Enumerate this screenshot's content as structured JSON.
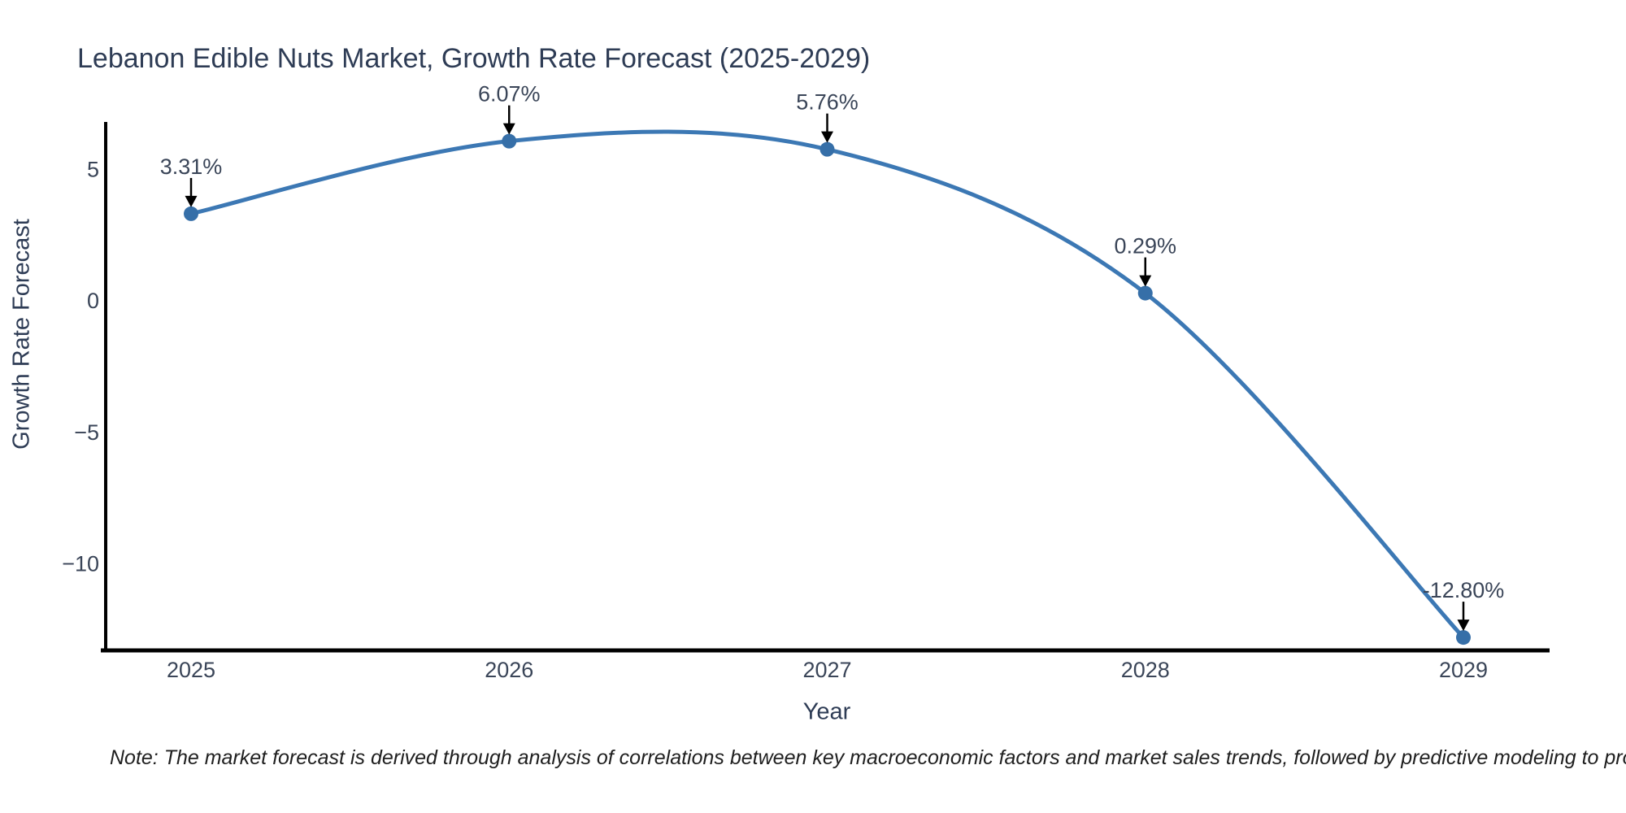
{
  "chart_data": {
    "type": "line",
    "title": "Lebanon Edible Nuts Market, Growth Rate Forecast (2025-2029)",
    "xlabel": "Year",
    "ylabel": "Growth Rate Forecast",
    "x": [
      2025,
      2026,
      2027,
      2028,
      2029
    ],
    "x_tick_labels": [
      "2025",
      "2026",
      "2027",
      "2028",
      "2029"
    ],
    "series": [
      {
        "name": "Growth Rate Forecast",
        "values": [
          3.31,
          6.07,
          5.76,
          0.29,
          -12.8
        ],
        "point_labels": [
          "3.31%",
          "6.07%",
          "5.76%",
          "0.29%",
          "-12.80%"
        ]
      }
    ],
    "y_ticks": [
      {
        "value": 5,
        "label": "5"
      },
      {
        "value": 0,
        "label": "0"
      },
      {
        "value": -5,
        "label": "−5"
      },
      {
        "value": -10,
        "label": "−10"
      }
    ],
    "ylim": [
      -13.3,
      6.8
    ],
    "xlim_years": [
      2025,
      2029
    ],
    "grid": false,
    "legend_position": "none",
    "curve_style": "smooth-spline",
    "annotation_style": "value-label-with-down-arrow",
    "colors": {
      "line": "#3c78b4",
      "marker": "#366fa8",
      "axis": "#000000",
      "arrow": "#000000",
      "tick_text": "#3a4558",
      "annotation_text": "#3a4558",
      "title_text": "#2e3c55",
      "background": "#ffffff"
    },
    "note": "Note: The market forecast is derived through analysis of correlations between key macroeconomic factors and market sales trends, followed by predictive modeling to project future sales"
  }
}
